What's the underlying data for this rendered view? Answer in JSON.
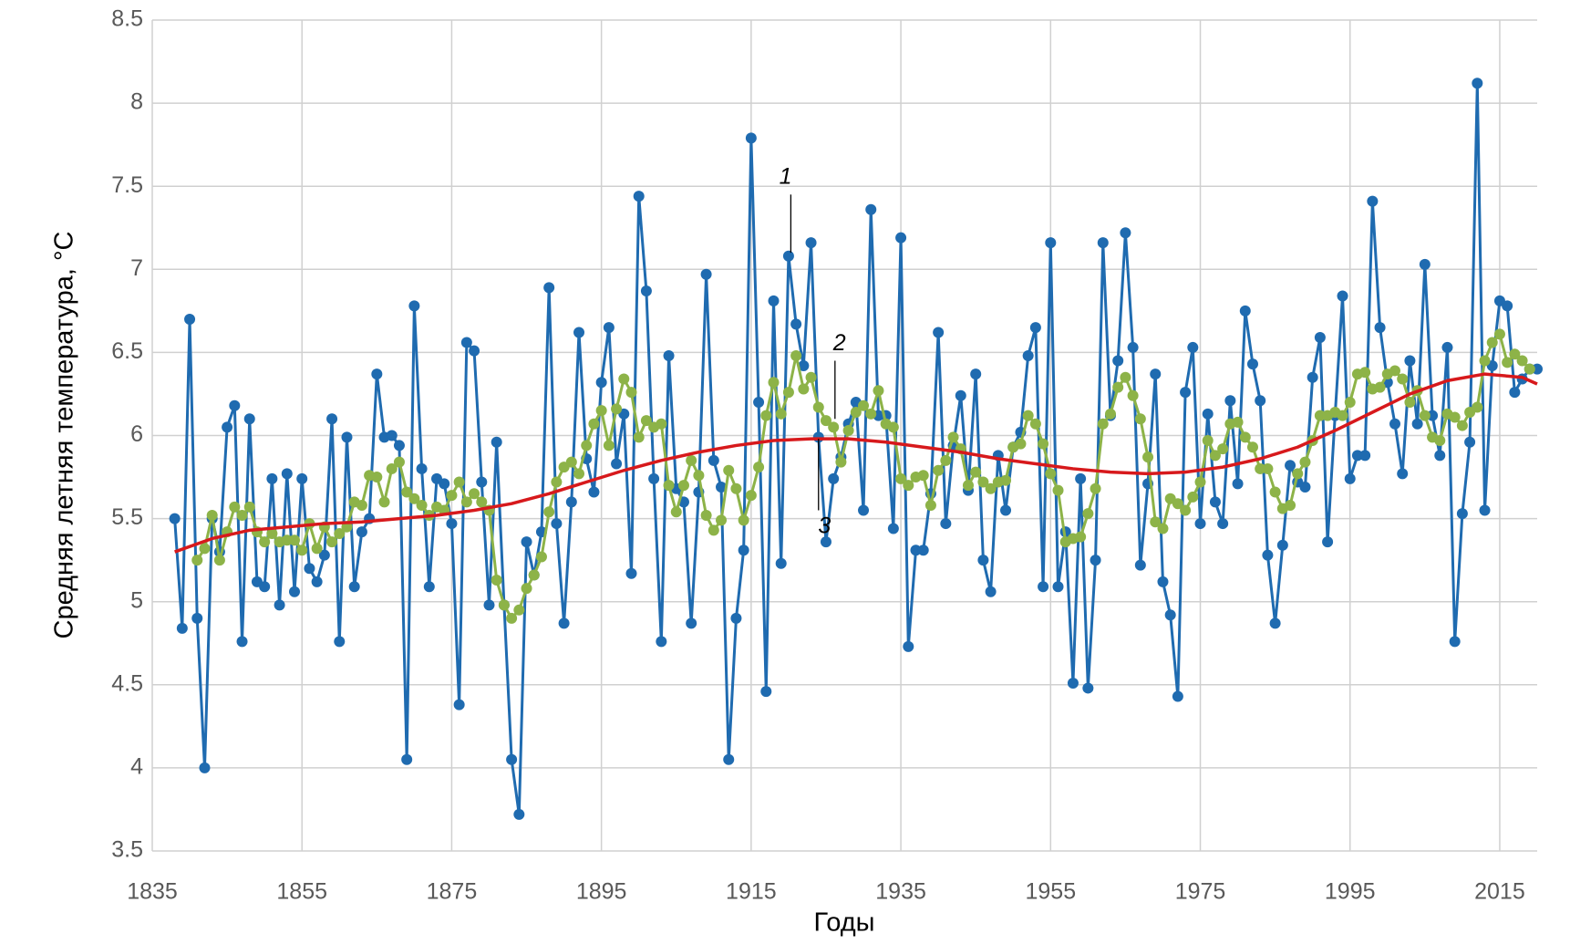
{
  "chart_data": {
    "type": "line",
    "xlabel": "Годы",
    "ylabel": "Средняя летняя температура, °C",
    "xlim": [
      1835,
      2020
    ],
    "xticks": [
      1835,
      1855,
      1875,
      1895,
      1915,
      1935,
      1955,
      1975,
      1995,
      2015
    ],
    "ylim": [
      3.5,
      8.5
    ],
    "yticks": [
      3.5,
      4,
      4.5,
      5,
      5.5,
      6,
      6.5,
      7,
      7.5,
      8,
      8.5
    ],
    "grid": true,
    "annotations": [
      "1",
      "2",
      "3"
    ],
    "x": [
      1838,
      1839,
      1840,
      1841,
      1842,
      1843,
      1844,
      1845,
      1846,
      1847,
      1848,
      1849,
      1850,
      1851,
      1852,
      1853,
      1854,
      1855,
      1856,
      1857,
      1858,
      1859,
      1860,
      1861,
      1862,
      1863,
      1864,
      1865,
      1866,
      1867,
      1868,
      1869,
      1870,
      1871,
      1872,
      1873,
      1874,
      1875,
      1876,
      1877,
      1878,
      1879,
      1880,
      1881,
      1882,
      1883,
      1884,
      1885,
      1886,
      1887,
      1888,
      1889,
      1890,
      1891,
      1892,
      1893,
      1894,
      1895,
      1896,
      1897,
      1898,
      1899,
      1900,
      1901,
      1902,
      1903,
      1904,
      1905,
      1906,
      1907,
      1908,
      1909,
      1910,
      1911,
      1912,
      1913,
      1914,
      1915,
      1916,
      1917,
      1918,
      1919,
      1920,
      1921,
      1922,
      1923,
      1924,
      1925,
      1926,
      1927,
      1928,
      1929,
      1930,
      1931,
      1932,
      1933,
      1934,
      1935,
      1936,
      1937,
      1938,
      1939,
      1940,
      1941,
      1942,
      1943,
      1944,
      1945,
      1946,
      1947,
      1948,
      1949,
      1950,
      1951,
      1952,
      1953,
      1954,
      1955,
      1956,
      1957,
      1958,
      1959,
      1960,
      1961,
      1962,
      1963,
      1964,
      1965,
      1966,
      1967,
      1968,
      1969,
      1970,
      1971,
      1972,
      1973,
      1974,
      1975,
      1976,
      1977,
      1978,
      1979,
      1980,
      1981,
      1982,
      1983,
      1984,
      1985,
      1986,
      1987,
      1988,
      1989,
      1990,
      1991,
      1992,
      1993,
      1994,
      1995,
      1996,
      1997,
      1998,
      1999,
      2000,
      2001,
      2002,
      2003,
      2004,
      2005,
      2006,
      2007,
      2008,
      2009,
      2010,
      2011,
      2012,
      2013,
      2014,
      2015,
      2016,
      2017,
      2018,
      2019,
      2020
    ],
    "series": [
      {
        "color": "#1f6bb0",
        "marker": true,
        "width": 3,
        "values": [
          5.5,
          4.84,
          6.7,
          4.9,
          4.0,
          5.5,
          5.3,
          6.05,
          6.18,
          4.76,
          6.1,
          5.12,
          5.09,
          5.74,
          4.98,
          5.77,
          5.06,
          5.74,
          5.2,
          5.12,
          5.28,
          6.1,
          4.76,
          5.99,
          5.09,
          5.42,
          5.5,
          6.37,
          5.99,
          6.0,
          5.94,
          4.05,
          6.78,
          5.8,
          5.09,
          5.74,
          5.71,
          5.47,
          4.38,
          6.56,
          6.51,
          5.72,
          4.98,
          5.96,
          4.98,
          4.05,
          3.72,
          5.36,
          5.16,
          5.42,
          6.89,
          5.47,
          4.87,
          5.6,
          6.62,
          5.86,
          5.66,
          6.32,
          6.65,
          5.83,
          6.13,
          5.17,
          7.44,
          6.87,
          5.74,
          4.76,
          6.48,
          5.68,
          5.6,
          4.87,
          5.66,
          6.97,
          5.85,
          5.69,
          4.05,
          4.9,
          5.31,
          7.79,
          6.2,
          4.46,
          6.81,
          5.23,
          7.08,
          6.67,
          6.42,
          7.16,
          5.99,
          5.36,
          5.74,
          5.87,
          6.07,
          6.2,
          5.55,
          7.36,
          6.12,
          6.12,
          5.44,
          7.19,
          4.73,
          5.31,
          5.31,
          5.65,
          6.62,
          5.47,
          5.94,
          6.24,
          5.67,
          6.37,
          5.25,
          5.06,
          5.88,
          5.55,
          5.93,
          6.02,
          6.48,
          6.65,
          5.09,
          7.16,
          5.09,
          5.42,
          4.51,
          5.74,
          4.48,
          5.25,
          7.16,
          6.12,
          6.45,
          7.22,
          6.53,
          5.22,
          5.71,
          6.37,
          5.12,
          4.92,
          4.43,
          6.26,
          6.53,
          5.47,
          6.13,
          5.6,
          5.47,
          6.21,
          5.71,
          6.75,
          6.43,
          6.21,
          5.28,
          4.87,
          5.34,
          5.82,
          5.72,
          5.69,
          6.35,
          6.59,
          5.36,
          6.12,
          6.84,
          5.74,
          5.88,
          5.88,
          7.41,
          6.65,
          6.32,
          6.07,
          5.77,
          6.45,
          6.07,
          7.03,
          6.12,
          5.88,
          6.53,
          4.76,
          5.53,
          5.96,
          8.12,
          5.55,
          6.42,
          6.81,
          6.78,
          6.26,
          6.34,
          6.4,
          6.4
        ]
      },
      {
        "color": "#8db348",
        "marker": true,
        "width": 3,
        "values": [
          null,
          null,
          null,
          5.25,
          5.32,
          5.52,
          5.25,
          5.42,
          5.57,
          5.52,
          5.57,
          5.42,
          5.36,
          5.41,
          5.36,
          5.37,
          5.37,
          5.31,
          5.47,
          5.32,
          5.45,
          5.36,
          5.41,
          5.45,
          5.6,
          5.58,
          5.76,
          5.75,
          5.6,
          5.8,
          5.84,
          5.66,
          5.62,
          5.58,
          5.52,
          5.57,
          5.55,
          5.64,
          5.72,
          5.6,
          5.65,
          5.6,
          5.55,
          5.13,
          4.98,
          4.9,
          4.95,
          5.08,
          5.16,
          5.27,
          5.54,
          5.72,
          5.81,
          5.84,
          5.77,
          5.94,
          6.07,
          6.15,
          5.94,
          6.16,
          6.34,
          6.26,
          5.99,
          6.09,
          6.05,
          6.07,
          5.7,
          5.54,
          5.7,
          5.85,
          5.76,
          5.52,
          5.43,
          5.49,
          5.79,
          5.68,
          5.49,
          5.64,
          5.81,
          6.12,
          6.32,
          6.13,
          6.26,
          6.48,
          6.28,
          6.35,
          6.17,
          6.09,
          6.05,
          5.84,
          6.03,
          6.14,
          6.18,
          6.13,
          6.27,
          6.07,
          6.05,
          5.74,
          5.7,
          5.75,
          5.76,
          5.58,
          5.79,
          5.85,
          5.99,
          5.92,
          5.7,
          5.78,
          5.72,
          5.68,
          5.72,
          5.73,
          5.93,
          5.95,
          6.12,
          6.07,
          5.95,
          5.77,
          5.67,
          5.36,
          5.38,
          5.39,
          5.53,
          5.68,
          6.07,
          6.13,
          6.29,
          6.35,
          6.24,
          6.1,
          5.87,
          5.48,
          5.44,
          5.62,
          5.59,
          5.55,
          5.63,
          5.72,
          5.97,
          5.88,
          5.92,
          6.07,
          6.08,
          5.99,
          5.93,
          5.8,
          5.8,
          5.66,
          5.56,
          5.58,
          5.77,
          5.84,
          5.97,
          6.12,
          6.12,
          6.14,
          6.12,
          6.2,
          6.37,
          6.38,
          6.28,
          6.29,
          6.37,
          6.39,
          6.34,
          6.2,
          6.27,
          6.12,
          5.99,
          5.97,
          6.13,
          6.11,
          6.06,
          6.14,
          6.17,
          6.45,
          6.56,
          6.61,
          6.44,
          6.49,
          6.45,
          6.4,
          null
        ]
      },
      {
        "color": "#d7191c",
        "marker": false,
        "width": 3.5,
        "x": [
          1838,
          1843,
          1848,
          1853,
          1858,
          1863,
          1868,
          1873,
          1878,
          1883,
          1888,
          1893,
          1898,
          1903,
          1908,
          1913,
          1918,
          1923,
          1928,
          1933,
          1938,
          1943,
          1948,
          1953,
          1958,
          1963,
          1968,
          1973,
          1978,
          1983,
          1988,
          1993,
          1998,
          2003,
          2008,
          2013,
          2018,
          2020
        ],
        "values": [
          5.3,
          5.38,
          5.43,
          5.45,
          5.47,
          5.48,
          5.5,
          5.52,
          5.55,
          5.59,
          5.65,
          5.72,
          5.79,
          5.85,
          5.9,
          5.94,
          5.97,
          5.98,
          5.98,
          5.96,
          5.93,
          5.9,
          5.86,
          5.83,
          5.8,
          5.78,
          5.77,
          5.78,
          5.81,
          5.86,
          5.93,
          6.03,
          6.14,
          6.25,
          6.33,
          6.37,
          6.35,
          6.31
        ]
      }
    ]
  }
}
